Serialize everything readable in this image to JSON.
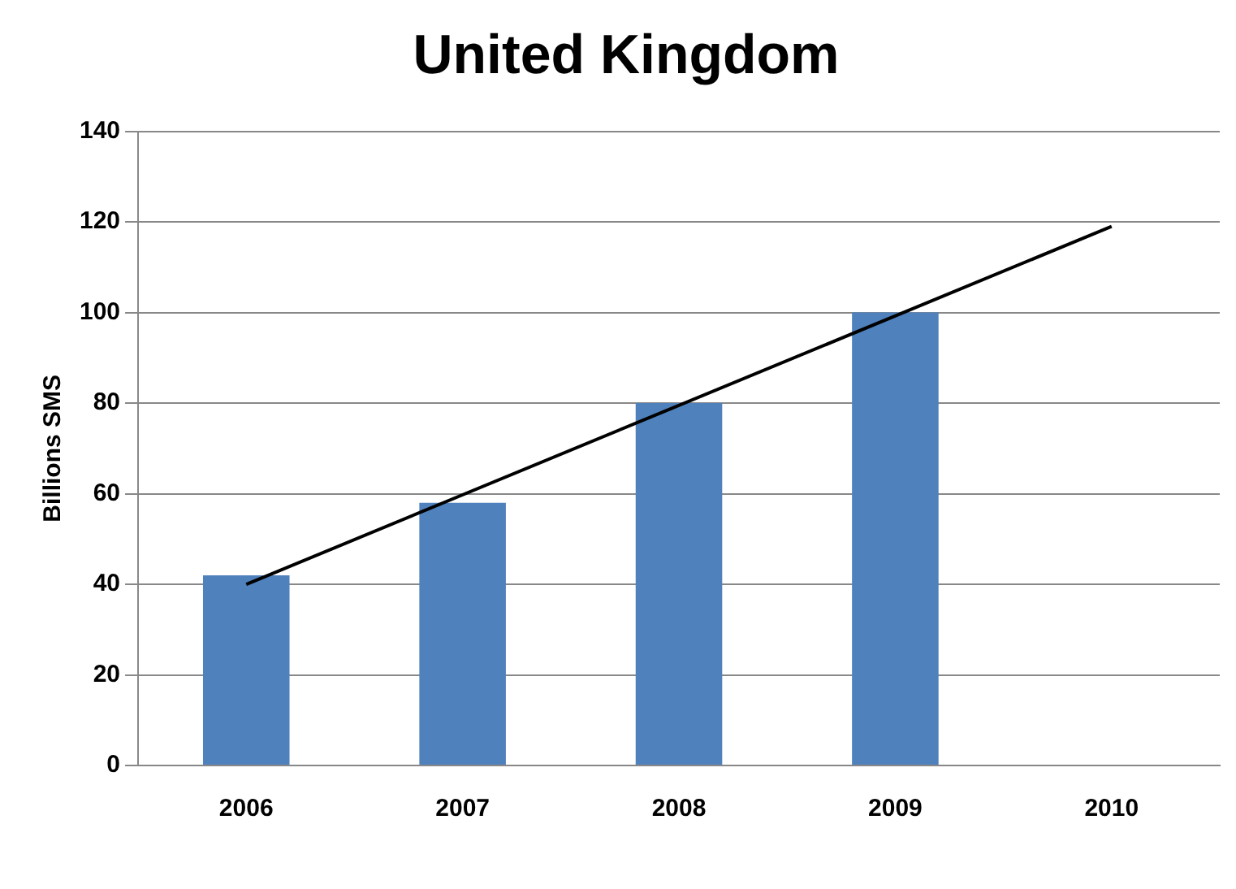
{
  "chart_data": {
    "type": "bar",
    "title": "United Kingdom",
    "ylabel": "Billions SMS",
    "categories": [
      "2006",
      "2007",
      "2008",
      "2009",
      "2010"
    ],
    "series": [
      {
        "type": "bar",
        "color": "#4f81bd",
        "values": [
          42,
          58,
          80,
          100,
          null
        ]
      },
      {
        "type": "line",
        "color": "#000000",
        "values": [
          40,
          null,
          null,
          null,
          119
        ]
      }
    ],
    "ylim": [
      0,
      140
    ],
    "yticks": [
      0,
      20,
      40,
      60,
      80,
      100,
      120,
      140
    ],
    "grid": "y",
    "legend": false,
    "marker": "none"
  }
}
